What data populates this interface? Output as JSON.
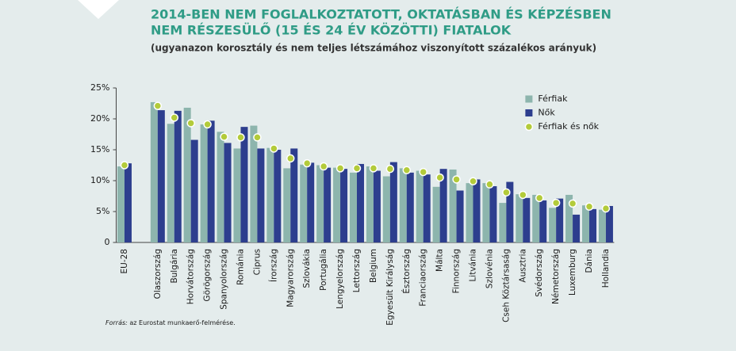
{
  "chart_data": {
    "type": "bar",
    "title": [
      "2014-BEN NEM FOGLALKOZTATOTT, OKTATÁSBAN ÉS KÉPZÉSBEN",
      "NEM RÉSZESÜLŐ (15 ÉS 24 ÉV KÖZÖTTI) FIATALOK"
    ],
    "subtitle": "(ugyanazon korosztály és nem teljes létszámához viszonyított százalékos arányuk)",
    "source_label": "Forrás:",
    "source": "az Eurostat munkaerő-felmérése.",
    "categories": [
      "EU-28",
      null,
      "Olaszország",
      "Bulgária",
      "Horvátország",
      "Görögország",
      "Spanyolország",
      "Románia",
      "Ciprus",
      "Írország",
      "Magyarország",
      "Szlovákia",
      "Portugália",
      "Lengyelország",
      "Lettország",
      "Belgium",
      "Egyesült Királyság",
      "Észtország",
      "Franciaország",
      "Málta",
      "Finnország",
      "Litvánia",
      "Szlovénia",
      "Cseh Köztársaság",
      "Ausztria",
      "Svédország",
      "Németország",
      "Luxemburg",
      "Dánia",
      "Hollandia"
    ],
    "series": [
      {
        "name": "Férfiak",
        "type": "bar",
        "color": "#8db5ad",
        "values": [
          12.3,
          null,
          22.7,
          19.2,
          21.8,
          19.1,
          17.9,
          15.2,
          18.9,
          15.3,
          12.0,
          12.6,
          12.5,
          12.1,
          11.3,
          12.3,
          10.7,
          12.0,
          11.6,
          9.0,
          11.8,
          9.6,
          9.6,
          6.4,
          7.8,
          7.7,
          5.6,
          7.7,
          6.0,
          5.3
        ]
      },
      {
        "name": "Nők",
        "type": "bar",
        "color": "#2d3e8e",
        "values": [
          12.8,
          null,
          21.4,
          21.3,
          16.6,
          19.7,
          16.1,
          18.7,
          15.2,
          15.0,
          15.2,
          12.9,
          12.1,
          11.9,
          12.7,
          11.6,
          13.0,
          11.3,
          11.0,
          11.9,
          8.4,
          10.2,
          9.1,
          9.8,
          7.2,
          6.8,
          7.1,
          4.5,
          5.4,
          5.9
        ]
      },
      {
        "name": "Férfiak és nők",
        "type": "scatter",
        "color": "#b3cb3a",
        "values": [
          12.5,
          null,
          22.1,
          20.2,
          19.3,
          19.1,
          17.1,
          17.0,
          17.0,
          15.2,
          13.6,
          12.8,
          12.3,
          12.0,
          12.0,
          12.0,
          11.9,
          11.7,
          11.4,
          10.5,
          10.2,
          9.9,
          9.4,
          8.1,
          7.7,
          7.2,
          6.4,
          6.3,
          5.8,
          5.5
        ]
      }
    ],
    "ylim": [
      0,
      25
    ],
    "yticks": [
      0,
      {
        "value": 5,
        "label": "5%"
      },
      {
        "value": 10,
        "label": "10%"
      },
      {
        "value": 15,
        "label": "15%"
      },
      {
        "value": 20,
        "label": "20%"
      },
      {
        "value": 25,
        "label": "25%"
      }
    ],
    "legend": "top-right"
  }
}
